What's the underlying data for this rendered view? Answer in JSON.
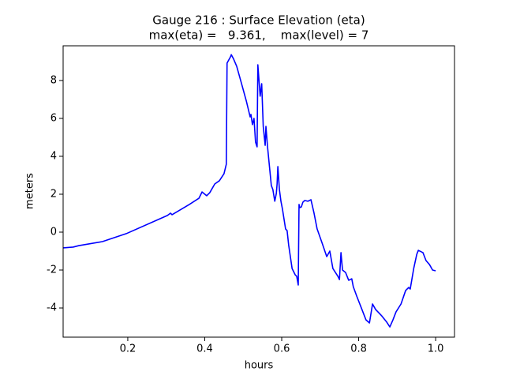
{
  "chart_data": {
    "type": "line",
    "title": "Gauge 216 : Surface Elevation (eta)",
    "subtitle": "max(eta) =   9.361,    max(level) = 7",
    "x_label": "hours",
    "y_label": "meters",
    "xlim": [
      0.032,
      1.049
    ],
    "ylim": [
      -5.54,
      9.83
    ],
    "xticks": [
      0.2,
      0.4,
      0.6,
      0.8,
      {
        "value": 1,
        "label": "1.0"
      }
    ],
    "yticks": [
      -4,
      -2,
      0,
      2,
      4,
      6,
      8
    ],
    "grid": false,
    "series": [
      {
        "color": "#0000ff",
        "x": [
          0.032,
          0.058,
          0.073,
          0.134,
          0.196,
          0.303,
          0.311,
          0.315,
          0.36,
          0.385,
          0.393,
          0.405,
          0.413,
          0.426,
          0.438,
          0.45,
          0.456,
          0.458,
          0.467,
          0.469,
          0.475,
          0.483,
          0.495,
          0.508,
          0.518,
          0.52,
          0.524,
          0.528,
          0.532,
          0.536,
          0.538,
          0.544,
          0.548,
          0.552,
          0.557,
          0.559,
          0.563,
          0.569,
          0.573,
          0.577,
          0.582,
          0.586,
          0.588,
          0.59,
          0.594,
          0.598,
          0.602,
          0.61,
          0.614,
          0.618,
          0.627,
          0.635,
          0.639,
          0.643,
          0.645,
          0.647,
          0.651,
          0.655,
          0.66,
          0.668,
          0.676,
          0.684,
          0.692,
          0.705,
          0.717,
          0.725,
          0.733,
          0.746,
          0.75,
          0.754,
          0.758,
          0.766,
          0.774,
          0.782,
          0.786,
          0.795,
          0.807,
          0.819,
          0.828,
          0.836,
          0.844,
          0.86,
          0.873,
          0.881,
          0.889,
          0.897,
          0.91,
          0.922,
          0.93,
          0.934,
          0.943,
          0.951,
          0.955,
          0.967,
          0.975,
          0.984,
          0.992,
          1.0
        ],
        "values": [
          -0.83,
          -0.79,
          -0.71,
          -0.5,
          -0.08,
          0.88,
          1.0,
          0.92,
          1.46,
          1.79,
          2.12,
          1.92,
          2.08,
          2.54,
          2.71,
          3.08,
          3.58,
          8.92,
          9.25,
          9.361,
          9.13,
          8.75,
          7.88,
          6.92,
          6.08,
          6.21,
          5.67,
          6.0,
          4.75,
          4.5,
          8.83,
          7.17,
          7.83,
          5.58,
          4.58,
          5.58,
          4.54,
          3.29,
          2.46,
          2.25,
          1.63,
          2.04,
          2.54,
          3.46,
          2.25,
          1.63,
          1.21,
          0.17,
          0.08,
          -0.67,
          -1.92,
          -2.25,
          -2.33,
          -2.79,
          1.46,
          1.29,
          1.33,
          1.58,
          1.67,
          1.63,
          1.71,
          1.0,
          0.17,
          -0.58,
          -1.29,
          -1.0,
          -1.92,
          -2.33,
          -2.5,
          -1.08,
          -2.0,
          -2.13,
          -2.54,
          -2.46,
          -2.88,
          -3.38,
          -4.0,
          -4.63,
          -4.79,
          -3.79,
          -4.08,
          -4.42,
          -4.75,
          -5.0,
          -4.63,
          -4.21,
          -3.79,
          -3.08,
          -2.92,
          -3.0,
          -1.92,
          -1.17,
          -0.96,
          -1.08,
          -1.5,
          -1.71,
          -2.0,
          -2.04
        ]
      }
    ]
  }
}
